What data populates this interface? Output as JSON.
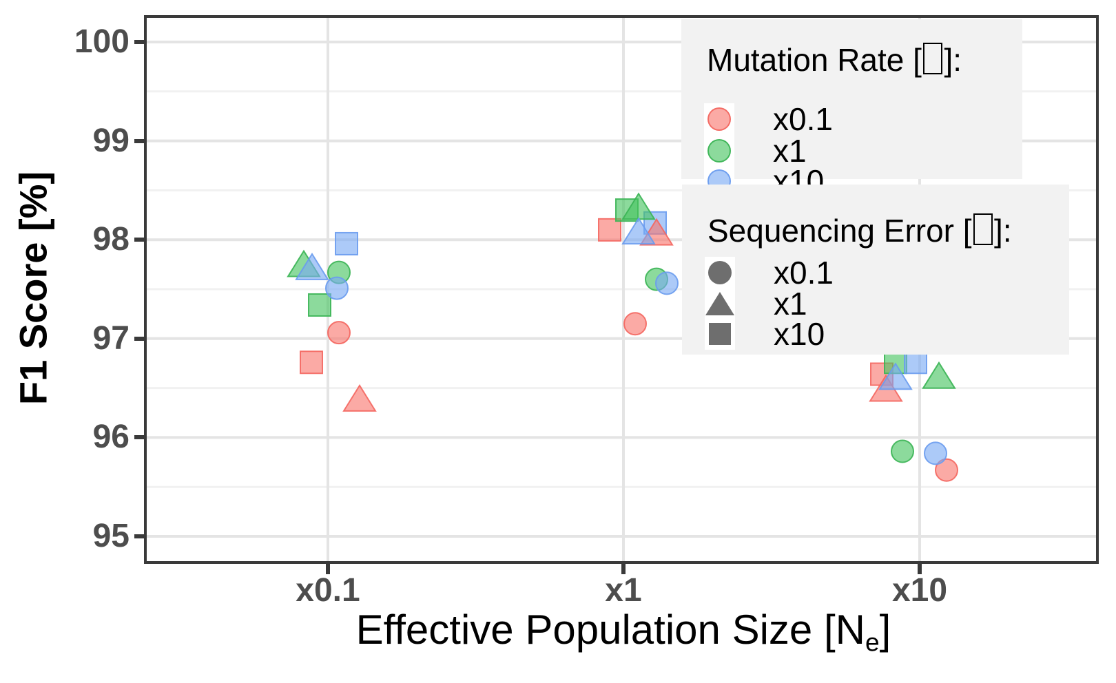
{
  "y_axis": {
    "title": "F1 Score [%]",
    "tick_labels": [
      "100",
      "99",
      "98",
      "97",
      "96",
      "95"
    ],
    "tick_values": [
      100,
      99,
      98,
      97,
      96,
      95
    ]
  },
  "x_axis": {
    "title_pre": "Effective Population Size [N",
    "title_sub": "e",
    "title_post": "]",
    "categories": [
      "x0.1",
      "x1",
      "x10"
    ]
  },
  "legends": {
    "mutation_rate": {
      "title_pre": "Mutation Rate [",
      "title_post": "]:",
      "items": [
        {
          "label": "x0.1",
          "color": "#F8766D"
        },
        {
          "label": "x1",
          "color": "#46C45F"
        },
        {
          "label": "x10",
          "color": "#79AAF3"
        }
      ]
    },
    "sequencing_error": {
      "title_pre": "Sequencing Error [",
      "title_post": "]:",
      "items": [
        {
          "label": "x0.1",
          "shape": "circle",
          "color": "#6E6E6E"
        },
        {
          "label": "x1",
          "shape": "triangle",
          "color": "#6E6E6E"
        },
        {
          "label": "x10",
          "shape": "square",
          "color": "#6E6E6E"
        }
      ]
    }
  },
  "chart_data": {
    "type": "scatter",
    "title": "",
    "xlabel": "Effective Population Size [Ne]",
    "ylabel": "F1 Score [%]",
    "x_categories": [
      "x0.1",
      "x1",
      "x10"
    ],
    "ylim": [
      94.75,
      100.25
    ],
    "y_major_gridlines": [
      95,
      96,
      97,
      98,
      99,
      100
    ],
    "y_minor_gridlines": [
      95.5,
      96.5,
      97.5,
      98.5,
      99.5
    ],
    "grid": "on",
    "legend_position": "inside-top-right",
    "color_encoding": "mutation rate (x0.1 red, x1 green, x10 blue)",
    "shape_encoding": "sequencing error (x0.1 circle, x1 triangle, x10 square)",
    "palette": {
      "x0.1": {
        "fill": "rgba(248,118,109,0.62)",
        "stroke": "rgba(244,102,95,0.9)"
      },
      "x1": {
        "fill": "rgba(70,196,95,0.62)",
        "stroke": "rgba(58,180,84,0.9)"
      },
      "x10": {
        "fill": "rgba(121,170,243,0.62)",
        "stroke": "rgba(105,155,238,0.9)"
      }
    },
    "points": [
      {
        "ne": "x0.1",
        "mu": "x0.1",
        "err": "x0.1",
        "f1": 97.06,
        "dx": 16
      },
      {
        "ne": "x0.1",
        "mu": "x0.1",
        "err": "x1",
        "f1": 96.38,
        "dx": 46
      },
      {
        "ne": "x0.1",
        "mu": "x0.1",
        "err": "x10",
        "f1": 96.76,
        "dx": -24
      },
      {
        "ne": "x0.1",
        "mu": "x1",
        "err": "x0.1",
        "f1": 97.67,
        "dx": 16
      },
      {
        "ne": "x0.1",
        "mu": "x1",
        "err": "x1",
        "f1": 97.74,
        "dx": -35
      },
      {
        "ne": "x0.1",
        "mu": "x1",
        "err": "x10",
        "f1": 97.34,
        "dx": -12
      },
      {
        "ne": "x0.1",
        "mu": "x10",
        "err": "x0.1",
        "f1": 97.51,
        "dx": 13
      },
      {
        "ne": "x0.1",
        "mu": "x10",
        "err": "x1",
        "f1": 97.71,
        "dx": -23
      },
      {
        "ne": "x0.1",
        "mu": "x10",
        "err": "x10",
        "f1": 97.96,
        "dx": 27
      },
      {
        "ne": "x1",
        "mu": "x0.1",
        "err": "x0.1",
        "f1": 97.15,
        "dx": 17
      },
      {
        "ne": "x1",
        "mu": "x0.1",
        "err": "x1",
        "f1": 98.06,
        "dx": 48
      },
      {
        "ne": "x1",
        "mu": "x0.1",
        "err": "x10",
        "f1": 98.1,
        "dx": -20
      },
      {
        "ne": "x1",
        "mu": "x1",
        "err": "x0.1",
        "f1": 97.6,
        "dx": 48
      },
      {
        "ne": "x1",
        "mu": "x1",
        "err": "x1",
        "f1": 98.32,
        "dx": 22
      },
      {
        "ne": "x1",
        "mu": "x1",
        "err": "x10",
        "f1": 98.3,
        "dx": 5
      },
      {
        "ne": "x1",
        "mu": "x10",
        "err": "x0.1",
        "f1": 97.56,
        "dx": 63
      },
      {
        "ne": "x1",
        "mu": "x10",
        "err": "x1",
        "f1": 98.07,
        "dx": 22
      },
      {
        "ne": "x1",
        "mu": "x10",
        "err": "x10",
        "f1": 98.17,
        "dx": 46
      },
      {
        "ne": "x10",
        "mu": "x0.1",
        "err": "x0.1",
        "f1": 95.67,
        "dx": 39
      },
      {
        "ne": "x10",
        "mu": "x0.1",
        "err": "x1",
        "f1": 96.48,
        "dx": -49
      },
      {
        "ne": "x10",
        "mu": "x0.1",
        "err": "x10",
        "f1": 96.64,
        "dx": -55
      },
      {
        "ne": "x10",
        "mu": "x1",
        "err": "x0.1",
        "f1": 95.86,
        "dx": -25
      },
      {
        "ne": "x10",
        "mu": "x1",
        "err": "x1",
        "f1": 96.61,
        "dx": 28
      },
      {
        "ne": "x10",
        "mu": "x1",
        "err": "x10",
        "f1": 96.76,
        "dx": -35
      },
      {
        "ne": "x10",
        "mu": "x10",
        "err": "x0.1",
        "f1": 95.84,
        "dx": 23
      },
      {
        "ne": "x10",
        "mu": "x10",
        "err": "x1",
        "f1": 96.6,
        "dx": -35
      },
      {
        "ne": "x10",
        "mu": "x10",
        "err": "x10",
        "f1": 96.76,
        "dx": -6
      }
    ]
  },
  "style": {
    "major_grid_color": "#E4E4E4",
    "minor_grid_color": "#F1F1F1",
    "panel_border_color": "#3A3A3A",
    "tick_label_color": "#4D4D4D",
    "legend_bg_color": "#F2F2F2"
  }
}
